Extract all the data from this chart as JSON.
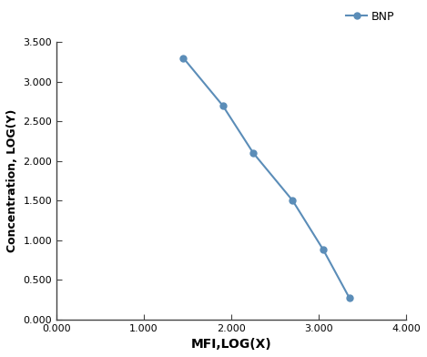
{
  "x": [
    1.45,
    1.9,
    2.25,
    2.7,
    3.05,
    3.35
  ],
  "y": [
    3.3,
    2.7,
    2.1,
    1.5,
    0.88,
    0.27
  ],
  "line_color": "#5b8db8",
  "marker_color": "#5b8db8",
  "marker_style": "o",
  "marker_size": 5,
  "line_width": 1.5,
  "xlabel": "MFI,LOG(X)",
  "ylabel": "Concentration, LOG(Y)",
  "xlim": [
    0.0,
    4.0
  ],
  "ylim": [
    0.0,
    3.5
  ],
  "xticks": [
    0.0,
    1.0,
    2.0,
    3.0,
    4.0
  ],
  "yticks": [
    0.0,
    0.5,
    1.0,
    1.5,
    2.0,
    2.5,
    3.0,
    3.5
  ],
  "legend_label": "BNP",
  "xlabel_fontsize": 10,
  "ylabel_fontsize": 9,
  "tick_fontsize": 8,
  "legend_fontsize": 9,
  "background_color": "#ffffff",
  "spine_color": "#444444",
  "tick_color": "#444444"
}
